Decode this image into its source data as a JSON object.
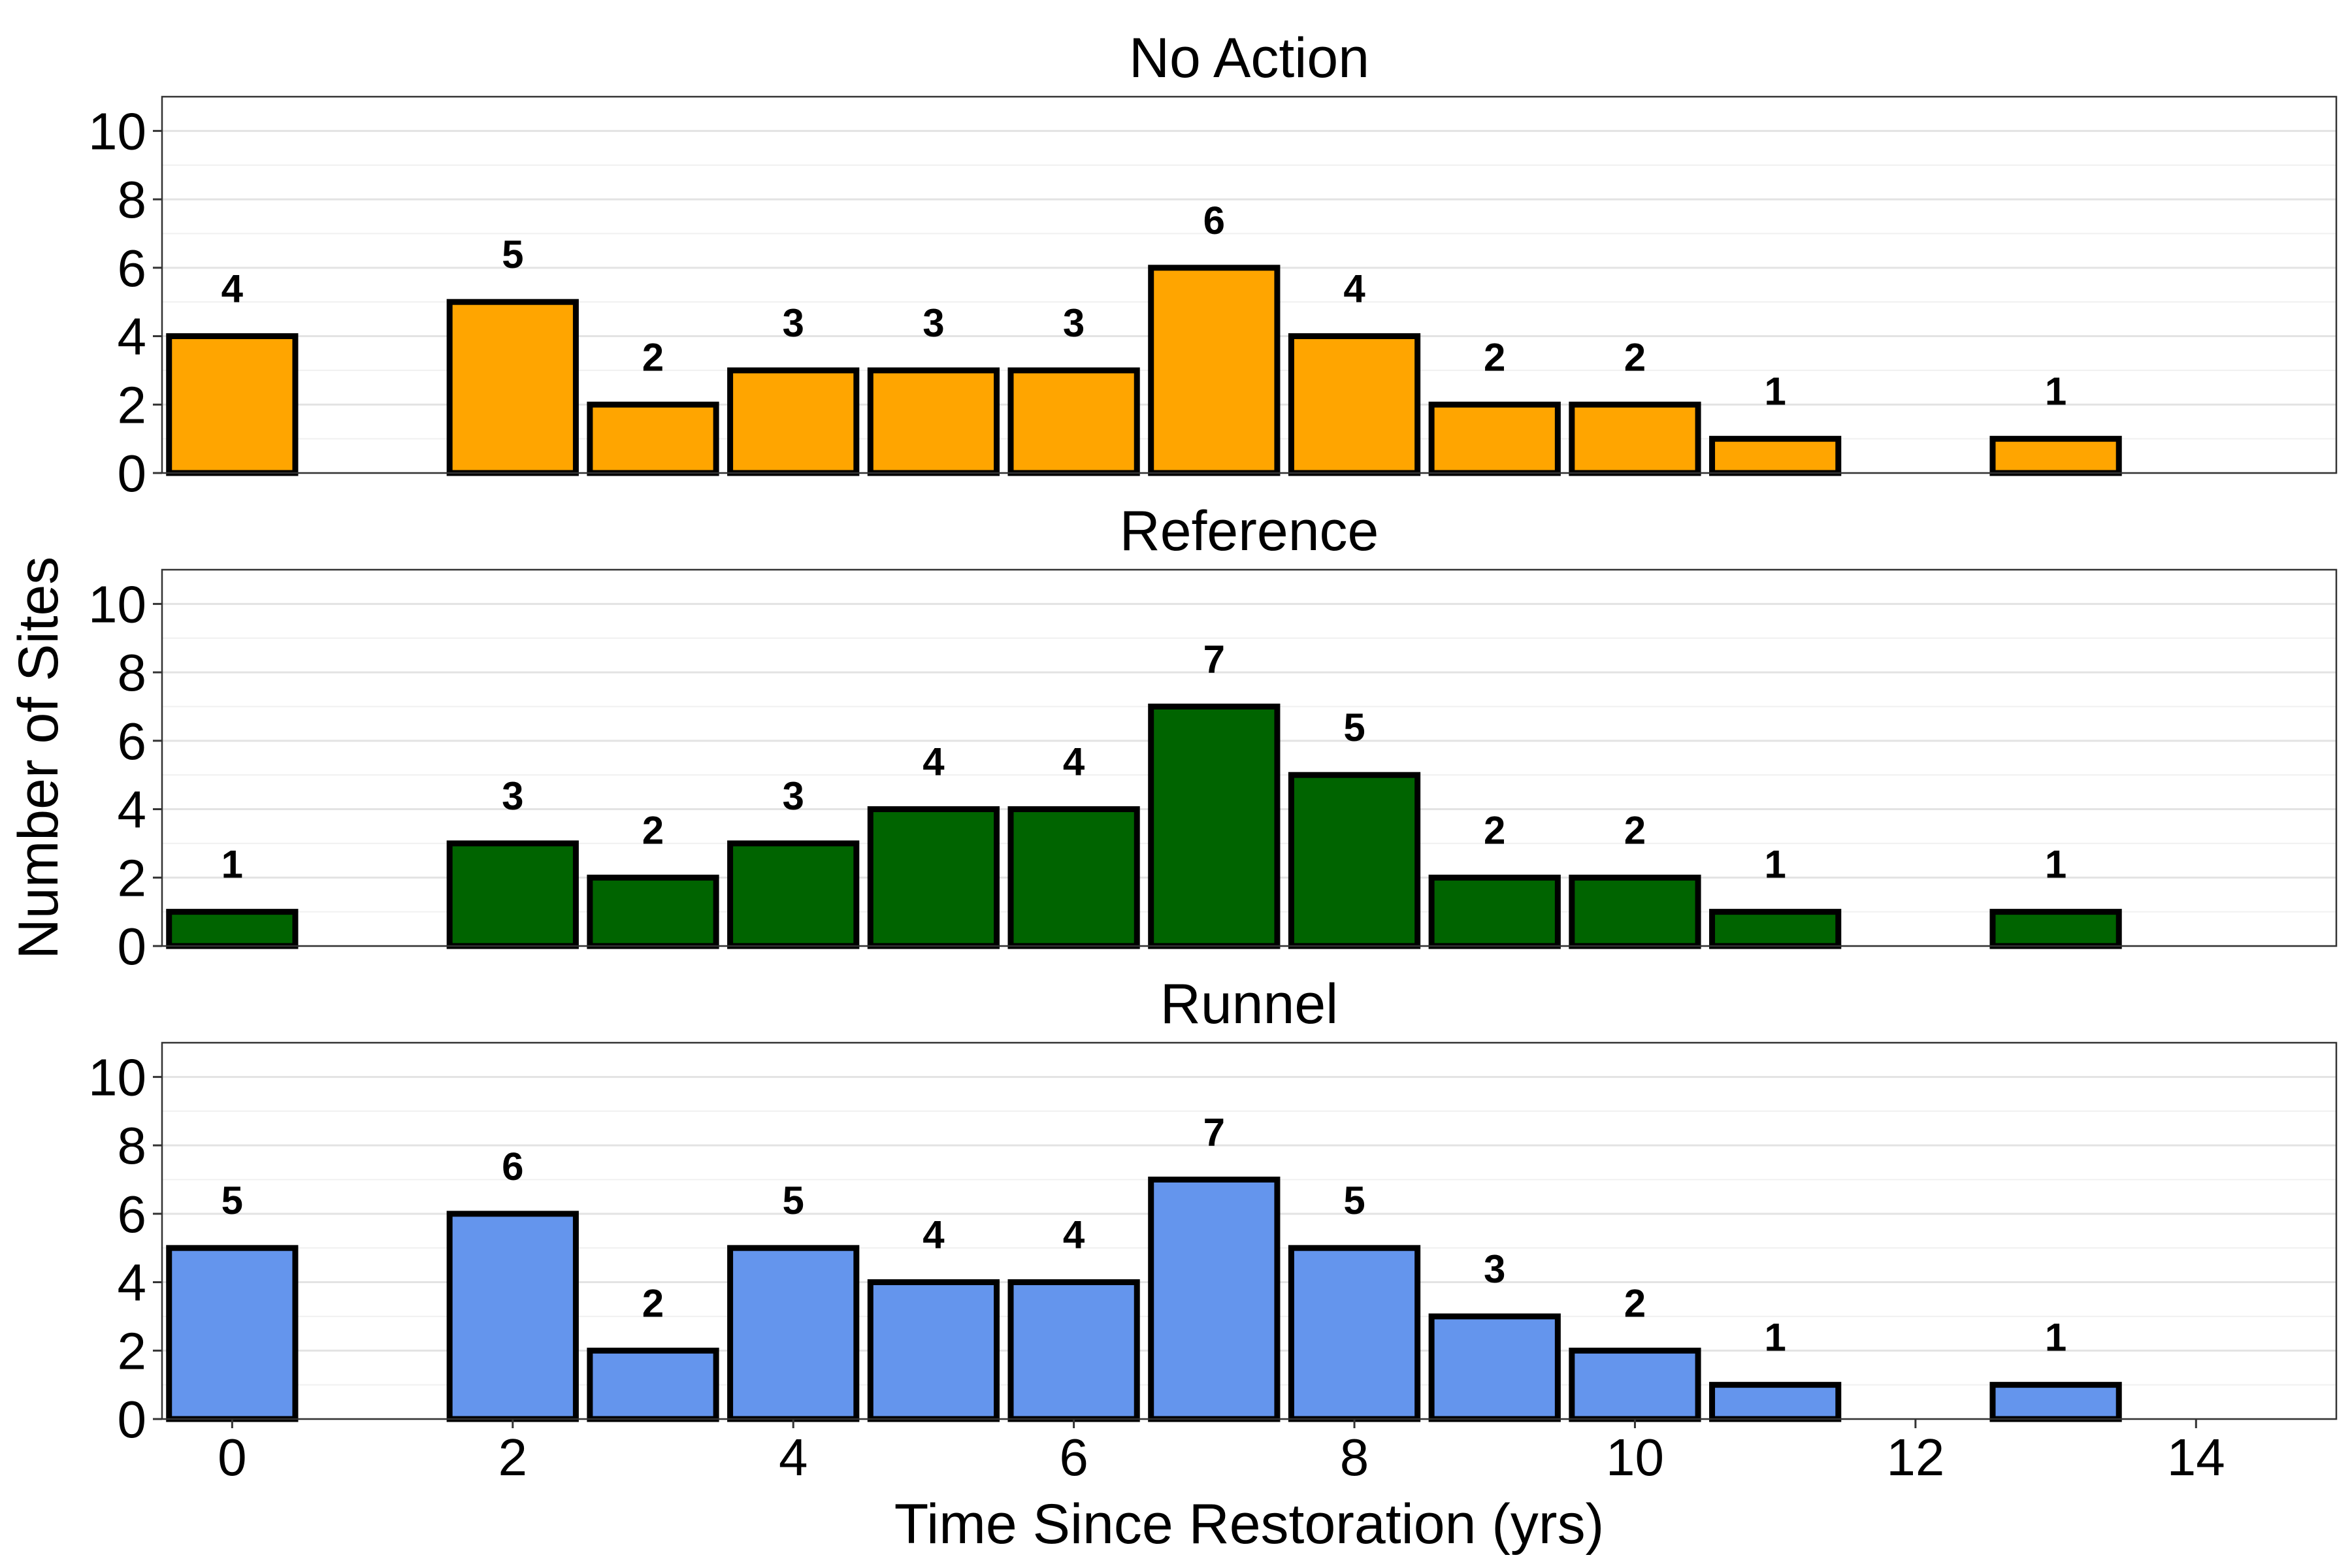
{
  "chart_data": {
    "type": "bar",
    "layout": "faceted-vertical",
    "xlabel": "Time Since Restoration (yrs)",
    "ylabel": "Number of Sites",
    "xlim": [
      -0.5,
      15
    ],
    "ylim": [
      0,
      11
    ],
    "x_ticks": [
      0,
      2,
      4,
      6,
      8,
      10,
      12,
      14
    ],
    "y_ticks": [
      0,
      2,
      4,
      6,
      8,
      10
    ],
    "grid": true,
    "legend": "none",
    "panels": [
      {
        "title": "No Action",
        "color": "#FFA500",
        "x": [
          0,
          2,
          3,
          4,
          5,
          6,
          7,
          8,
          9,
          10,
          11,
          13
        ],
        "values": [
          4,
          5,
          2,
          3,
          3,
          3,
          6,
          4,
          2,
          2,
          1,
          1
        ]
      },
      {
        "title": "Reference",
        "color": "#006400",
        "x": [
          0,
          2,
          3,
          4,
          5,
          6,
          7,
          8,
          9,
          10,
          11,
          13
        ],
        "values": [
          1,
          3,
          2,
          3,
          4,
          4,
          7,
          5,
          2,
          2,
          1,
          1
        ]
      },
      {
        "title": "Runnel",
        "color": "#6495ED",
        "x": [
          0,
          2,
          3,
          4,
          5,
          6,
          7,
          8,
          9,
          10,
          11,
          13
        ],
        "values": [
          5,
          6,
          2,
          5,
          4,
          4,
          7,
          5,
          3,
          2,
          1,
          1
        ]
      }
    ]
  }
}
